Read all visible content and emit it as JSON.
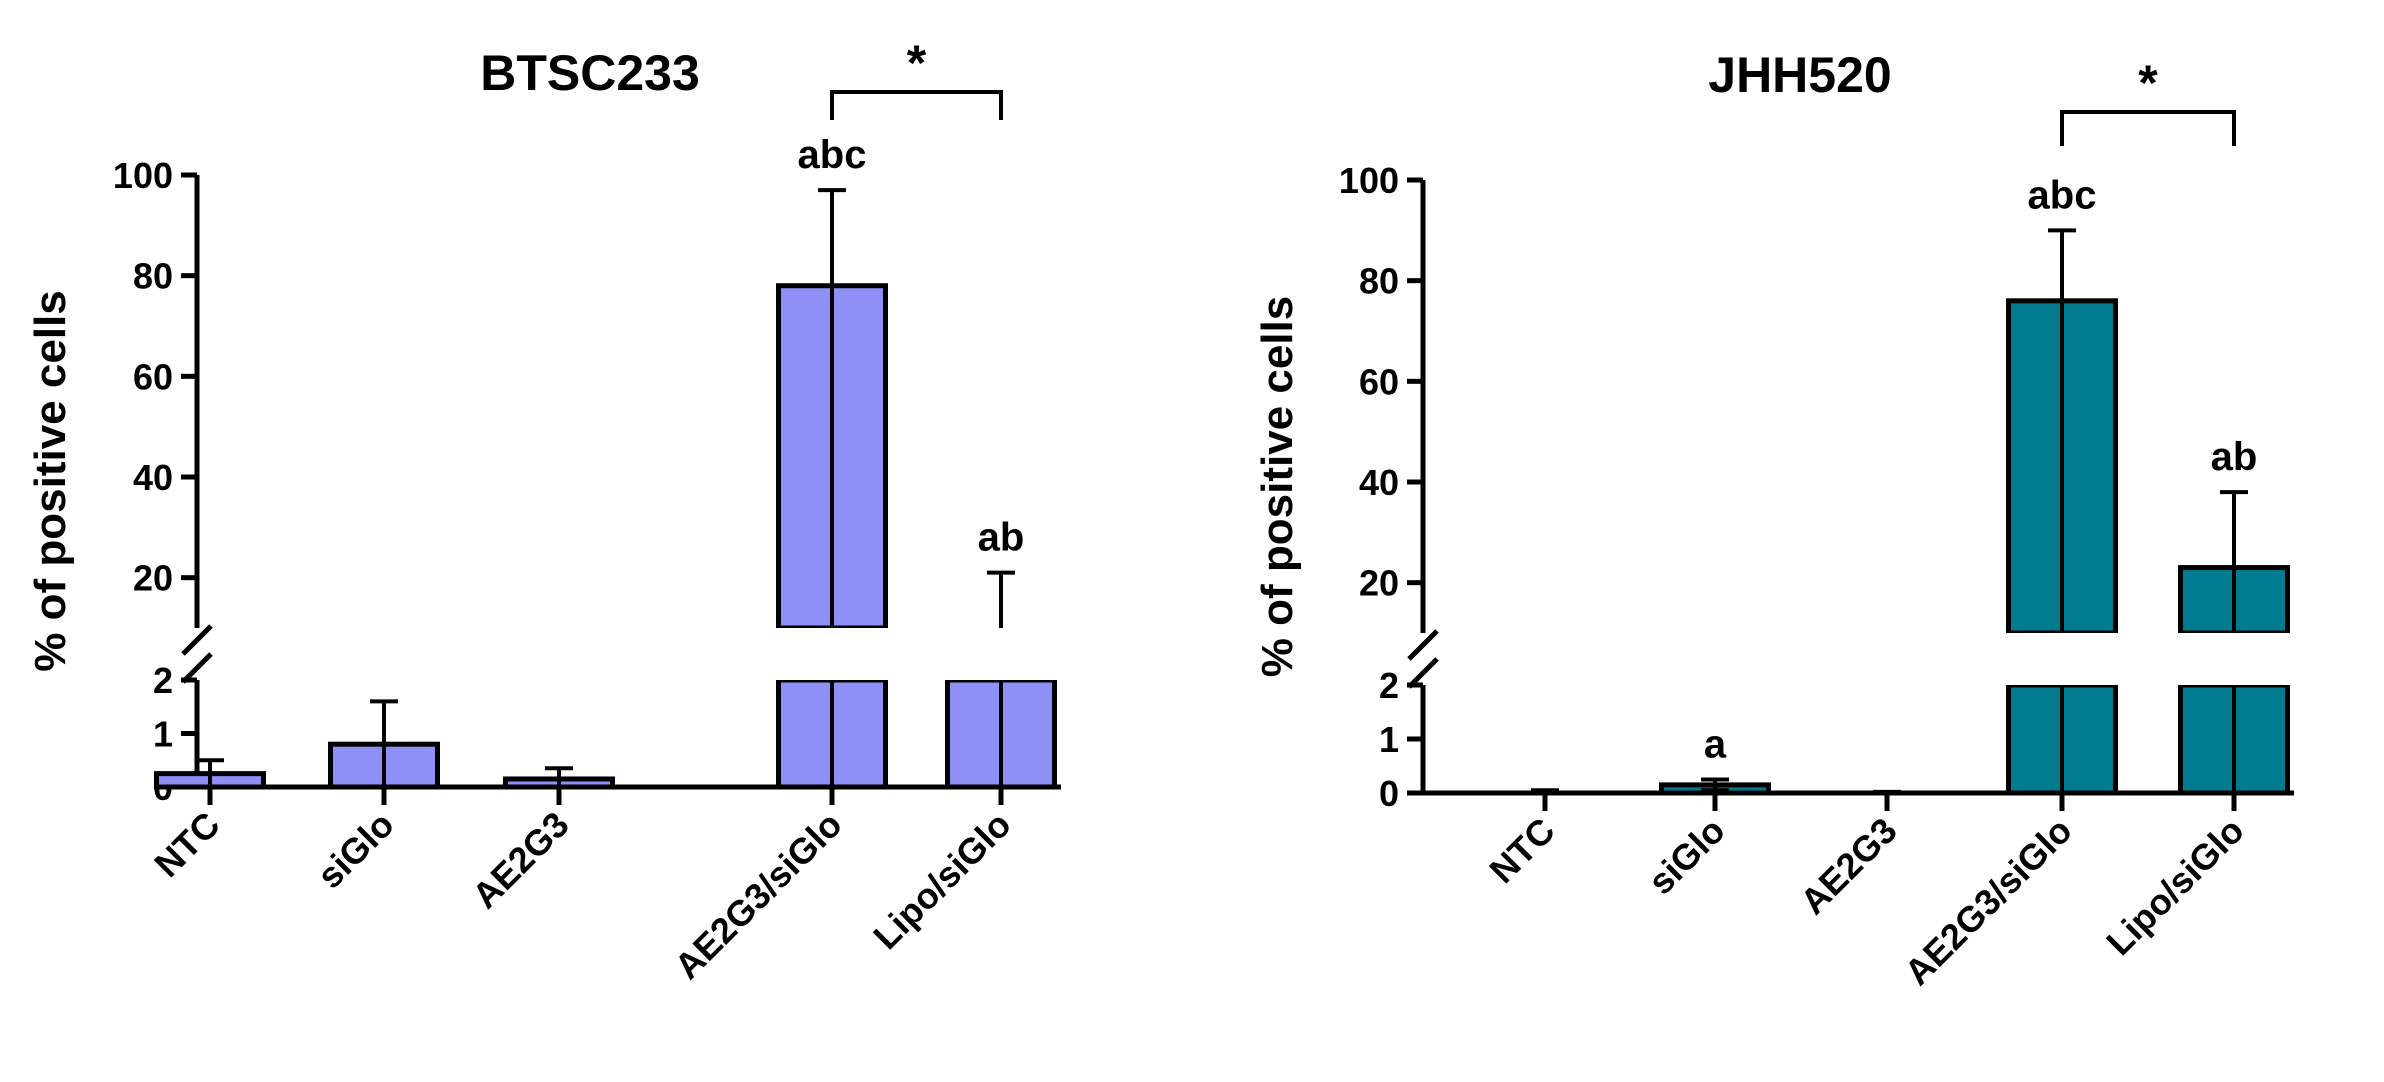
{
  "chart_data": [
    {
      "type": "bar",
      "title": "BTSC233",
      "ylabel": "% of positive cells",
      "xlabel": "",
      "categories": [
        "NTC",
        "siGlo",
        "AE2G3",
        "AE2G3/siGlo",
        "Lipo/siGlo"
      ],
      "values": [
        0.25,
        0.8,
        0.15,
        78,
        10
      ],
      "error": [
        0.25,
        0.8,
        0.2,
        19,
        11
      ],
      "significance_letters": [
        "",
        "",
        "",
        "abc",
        "ab"
      ],
      "y_axis_break": {
        "lower_range": [
          0,
          2
        ],
        "upper_range": [
          10,
          100
        ],
        "lower_ticks": [
          0,
          1,
          2
        ],
        "upper_ticks": [
          20,
          40,
          60,
          80,
          100
        ]
      },
      "bracket": {
        "from": "AE2G3/siGlo",
        "to": "Lipo/siGlo",
        "label": "*"
      },
      "color": "#8f8ff8",
      "edge_color": "#000000",
      "grid": false
    },
    {
      "type": "bar",
      "title": "JHH520",
      "ylabel": "% of positive cells",
      "xlabel": "",
      "categories": [
        "NTC",
        "siGlo",
        "AE2G3",
        "AE2G3/siGlo",
        "Lipo/siGlo"
      ],
      "values": [
        0,
        0.15,
        0,
        76,
        23
      ],
      "error": [
        0.05,
        0.1,
        0.02,
        14,
        15
      ],
      "significance_letters": [
        "",
        "a",
        "",
        "abc",
        "ab"
      ],
      "y_axis_break": {
        "lower_range": [
          0,
          2
        ],
        "upper_range": [
          10,
          100
        ],
        "lower_ticks": [
          0,
          1,
          2
        ],
        "upper_ticks": [
          20,
          40,
          60,
          80,
          100
        ]
      },
      "bracket": {
        "from": "AE2G3/siGlo",
        "to": "Lipo/siGlo",
        "label": "*"
      },
      "color": "#007b8f",
      "edge_color": "#000000",
      "grid": false
    }
  ]
}
